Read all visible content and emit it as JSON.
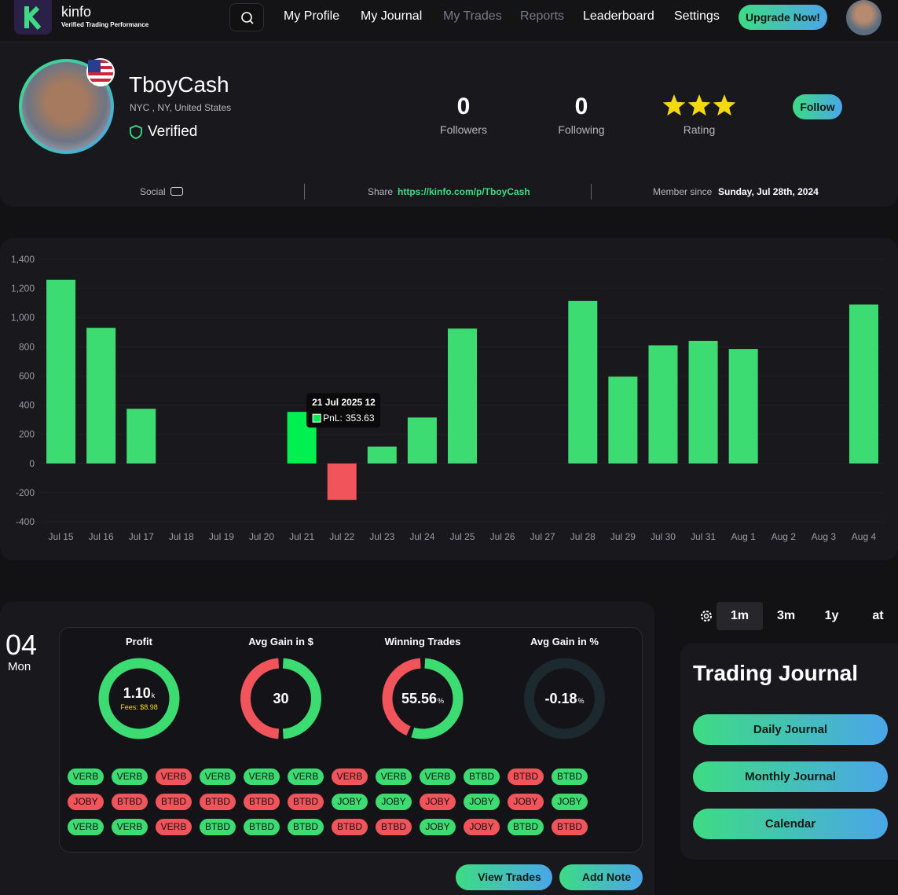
{
  "nav": {
    "brand": "kinfo",
    "tagline": "Verified Trading Performance",
    "links": [
      "My Profile",
      "My Journal",
      "My Trades",
      "Reports",
      "Leaderboard",
      "Settings"
    ],
    "upgrade": "Upgrade Now!"
  },
  "profile": {
    "name": "TboyCash",
    "location": "NYC , NY, United States",
    "verified": "Verified",
    "followers": 0,
    "followers_label": "Followers",
    "following": 0,
    "following_label": "Following",
    "rating": 3,
    "rating_label": "Rating",
    "follow": "Follow"
  },
  "info": {
    "social": "Social",
    "share_label": "Share",
    "share_url": "https://kinfo.com/p/TboyCash",
    "member_label": "Member since",
    "member_date": "Sunday, Jul 28th, 2024"
  },
  "chart_data": {
    "type": "bar",
    "categories": [
      "Jul 15",
      "Jul 16",
      "Jul 17",
      "Jul 18",
      "Jul 19",
      "Jul 20",
      "Jul 21",
      "Jul 22",
      "Jul 23",
      "Jul 24",
      "Jul 25",
      "Jul 26",
      "Jul 27",
      "Jul 28",
      "Jul 29",
      "Jul 30",
      "Jul 31",
      "Aug 1",
      "Aug 2",
      "Aug 3",
      "Aug 4"
    ],
    "values": [
      1260,
      930,
      375,
      null,
      null,
      null,
      353.63,
      -250,
      115,
      315,
      925,
      null,
      null,
      1115,
      595,
      810,
      840,
      785,
      null,
      null,
      1090
    ],
    "color": "#3ddc73",
    "negative_color": "#f2545b",
    "highlight_color": "#00f050",
    "highlight_index": 6,
    "ylim": [
      -400,
      1400
    ],
    "yticks": [
      -400,
      -200,
      0,
      200,
      400,
      600,
      800,
      {
        "value": 1000,
        "label": "1,000"
      },
      {
        "value": 1200,
        "label": "1,200"
      },
      {
        "value": 1400,
        "label": "1,400"
      }
    ],
    "tooltip": {
      "title": "21 Jul 2025 12",
      "label": "PnL:"
    }
  },
  "journal": {
    "day": "04",
    "weekday": "Mon",
    "stats": [
      {
        "title": "Profit",
        "value": "1.10",
        "unit": "k",
        "note": "Fees: $8.98"
      },
      {
        "title": "Avg Gain in $",
        "value": "30"
      },
      {
        "title": "Winning Trades",
        "value": "55.56",
        "unit": "%",
        "share": 55.56
      },
      {
        "title": "Avg Gain in %",
        "value": "-0.18",
        "unit": "%"
      }
    ],
    "tickers": [
      [
        [
          "VERB",
          true
        ],
        [
          "VERB",
          true
        ],
        [
          "VERB",
          false
        ],
        [
          "VERB",
          true
        ],
        [
          "VERB",
          true
        ],
        [
          "VERB",
          true
        ],
        [
          "VERB",
          false
        ],
        [
          "VERB",
          true
        ],
        [
          "VERB",
          true
        ],
        [
          "BTBD",
          true
        ],
        [
          "BTBD",
          false
        ],
        [
          "BTBD",
          true
        ]
      ],
      [
        [
          "JOBY",
          false
        ],
        [
          "BTBD",
          false
        ],
        [
          "BTBD",
          false
        ],
        [
          "BTBD",
          false
        ],
        [
          "BTBD",
          false
        ],
        [
          "BTBD",
          false
        ],
        [
          "JOBY",
          true
        ],
        [
          "JOBY",
          true
        ],
        [
          "JOBY",
          false
        ],
        [
          "JOBY",
          true
        ],
        [
          "JOBY",
          false
        ],
        [
          "JOBY",
          true
        ]
      ],
      [
        [
          "VERB",
          true
        ],
        [
          "VERB",
          true
        ],
        [
          "VERB",
          false
        ],
        [
          "BTBD",
          true
        ],
        [
          "BTBD",
          true
        ],
        [
          "BTBD",
          true
        ],
        [
          "BTBD",
          false
        ],
        [
          "BTBD",
          false
        ],
        [
          "JOBY",
          true
        ],
        [
          "JOBY",
          false
        ],
        [
          "BTBD",
          true
        ],
        [
          "BTBD",
          false
        ]
      ]
    ],
    "view_trades": "View Trades",
    "add_note": "Add Note"
  },
  "side": {
    "ranges": [
      "1m",
      "3m",
      "1y",
      "at"
    ],
    "title": "Trading Journal",
    "buttons": [
      "Daily Journal",
      "Monthly Journal",
      "Calendar"
    ]
  }
}
